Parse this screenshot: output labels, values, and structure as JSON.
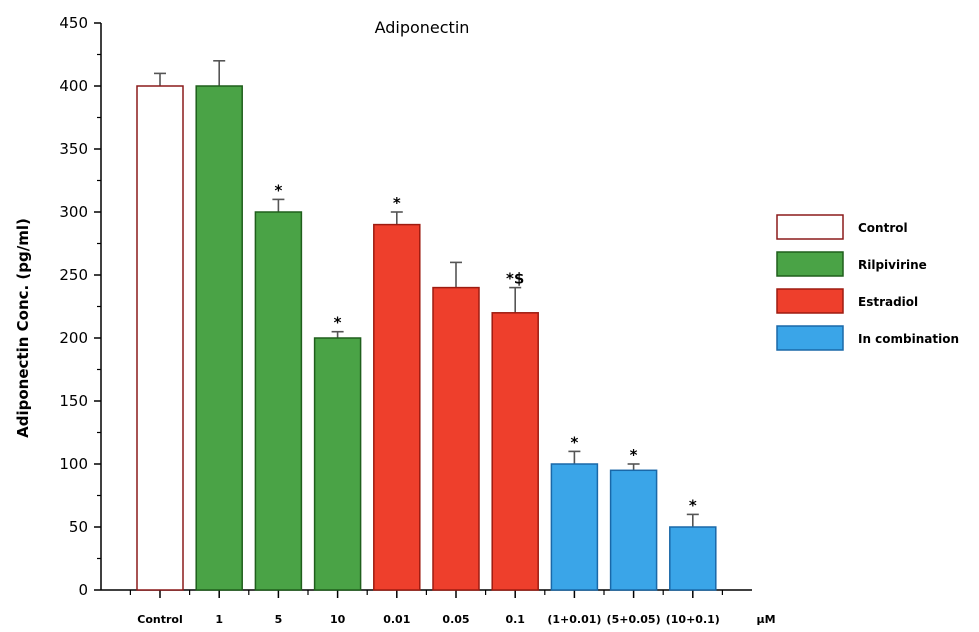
{
  "chart_data": {
    "type": "bar",
    "title": "Adiponectin",
    "ylabel": "Adiponectin Conc.  (pg/ml)",
    "x_unit": "μM",
    "ylim": [
      0,
      450
    ],
    "yticks": [
      0,
      50,
      100,
      150,
      200,
      250,
      300,
      350,
      400,
      450
    ],
    "categories": [
      "Control",
      "1",
      "5",
      "10",
      "0.01",
      "0.05",
      "0.1",
      "(1+0.01)",
      "(5+0.05)",
      "(10+0.1)"
    ],
    "values": [
      400,
      400,
      300,
      200,
      290,
      240,
      220,
      100,
      95,
      50
    ],
    "errors": [
      10,
      20,
      10,
      5,
      10,
      20,
      20,
      10,
      5,
      10
    ],
    "annotations": [
      "",
      "",
      "*",
      "*",
      "*",
      "",
      "*$",
      "*",
      "*",
      "*"
    ],
    "groups": [
      "Control",
      "Rilpivirine",
      "Rilpivirine",
      "Rilpivirine",
      "Estradiol",
      "Estradiol",
      "Estradiol",
      "In combination",
      "In combination",
      "In combination"
    ],
    "grid": false,
    "legend": {
      "placement": "right",
      "entries": [
        {
          "name": "Control",
          "color": "#ffffff",
          "stroke": "#8b1a1a"
        },
        {
          "name": "Rilpivirine",
          "color": "#4aa346",
          "stroke": "#1f5f1c"
        },
        {
          "name": "Estradiol",
          "color": "#ee3f2c",
          "stroke": "#9e1b10"
        },
        {
          "name": "In combination",
          "color": "#3aa5e8",
          "stroke": "#1a68a8"
        }
      ]
    }
  }
}
